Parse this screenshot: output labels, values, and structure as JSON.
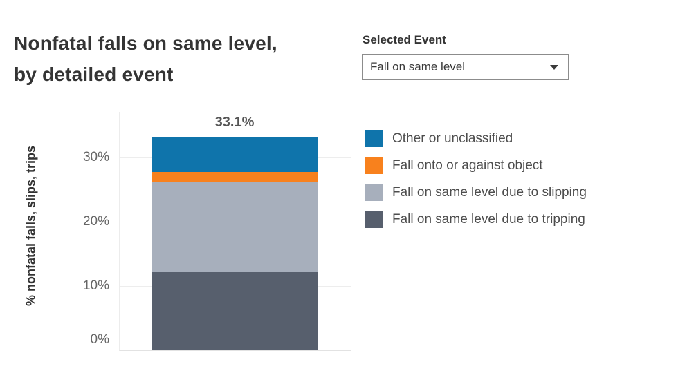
{
  "title": {
    "line1": "Nonfatal falls on same level,",
    "line2": "by detailed event"
  },
  "selector": {
    "label": "Selected Event",
    "value": "Fall on same level",
    "caret_icon": "dropdown-caret"
  },
  "chart_data": {
    "type": "bar",
    "subtype": "single-stacked-bar",
    "title": "Nonfatal falls on same level, by detailed event",
    "ylabel": "% nonfatal falls, slips, trips",
    "xlabel": "",
    "categories": [
      "Fall on same level"
    ],
    "total_label": "33.1%",
    "total_value": 33.1,
    "yticks": [
      "0%",
      "10%",
      "20%",
      "30%"
    ],
    "ylim": [
      0,
      37
    ],
    "grid": true,
    "legend_position": "right",
    "series": [
      {
        "name": "Other or unclassified",
        "value": 5.4,
        "color": "#0f74ab"
      },
      {
        "name": "Fall onto or against object",
        "value": 1.5,
        "color": "#f8811d"
      },
      {
        "name": "Fall on same level due to slipping",
        "value": 14.0,
        "color": "#a7afbc"
      },
      {
        "name": "Fall on same level due to tripping",
        "value": 12.2,
        "color": "#575f6d"
      }
    ]
  },
  "colors": {
    "title_text": "#343434",
    "tick_text": "#666666",
    "legend_text": "#4d4d4d",
    "gridline": "#ededed",
    "dropdown_border": "#8c8c8c"
  }
}
